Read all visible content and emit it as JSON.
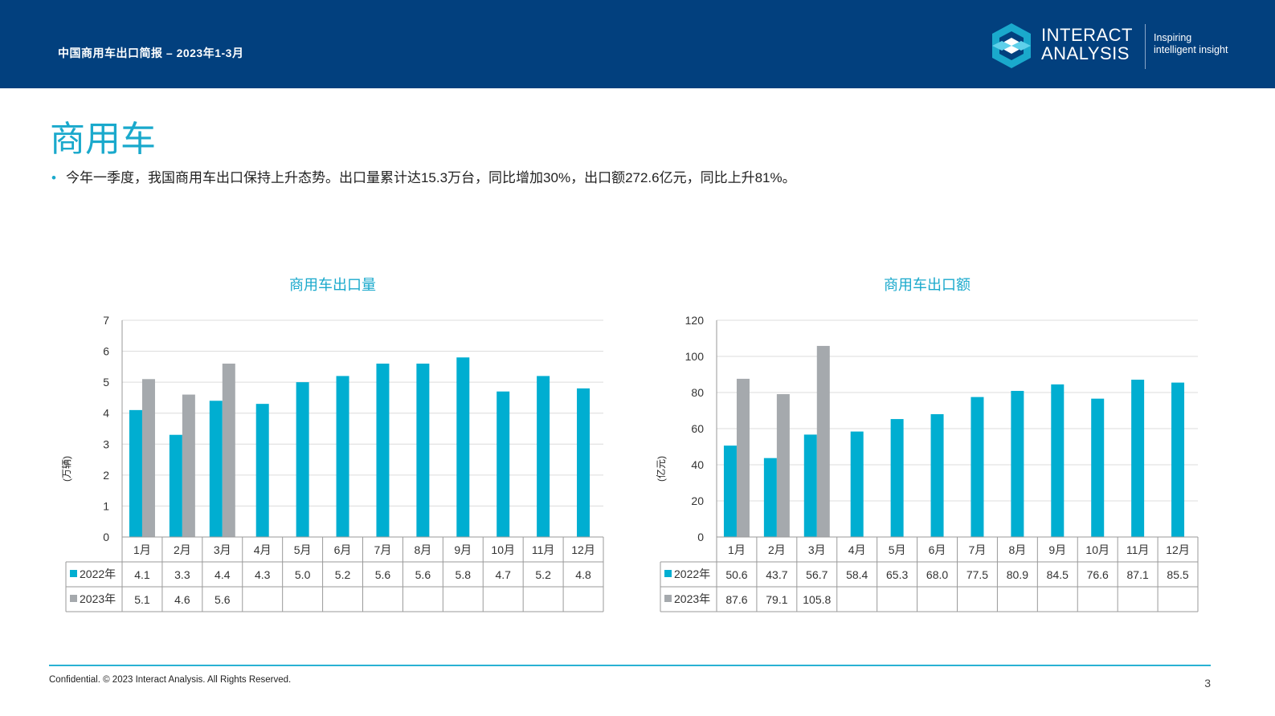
{
  "header": {
    "report_title": "中国商用车出口简报 – 2023年1-3月",
    "logo_line1": "INTERACT",
    "logo_line2": "ANALYSIS",
    "tagline1": "Inspiring",
    "tagline2": "intelligent insight"
  },
  "page": {
    "heading": "商用车",
    "bullet": "•",
    "summary": "今年一季度，我国商用车出口保持上升态势。出口量累计达15.3万台，同比增加30%，出口额272.6亿元，同比上升81%。"
  },
  "footer": {
    "text": "Confidential. © 2023 Interact Analysis. All Rights Reserved.",
    "page_number": "3",
    "line_color": "#29b2d3"
  },
  "colors": {
    "brand_blue": "#02407e",
    "accent": "#1aa9cc",
    "series_2022": "#00aed1",
    "series_2023": "#a5a9ad"
  },
  "chart_data": [
    {
      "type": "bar",
      "title": "商用车出口量",
      "ylabel": "(万辆)",
      "ylim": [
        0,
        7
      ],
      "yticks": [
        0,
        1,
        2,
        3,
        4,
        5,
        6,
        7
      ],
      "categories": [
        "1月",
        "2月",
        "3月",
        "4月",
        "5月",
        "6月",
        "7月",
        "8月",
        "9月",
        "10月",
        "11月",
        "12月"
      ],
      "series": [
        {
          "name": "2022年",
          "values": [
            4.1,
            3.3,
            4.4,
            4.3,
            5.0,
            5.2,
            5.6,
            5.6,
            5.8,
            4.7,
            5.2,
            4.8
          ]
        },
        {
          "name": "2023年",
          "values": [
            5.1,
            4.6,
            5.6,
            null,
            null,
            null,
            null,
            null,
            null,
            null,
            null,
            null
          ]
        }
      ],
      "grid": true,
      "data_table": true
    },
    {
      "type": "bar",
      "title": "商用车出口额",
      "ylabel": "(亿元)",
      "ylim": [
        0,
        120
      ],
      "yticks": [
        0,
        20,
        40,
        60,
        80,
        100,
        120
      ],
      "categories": [
        "1月",
        "2月",
        "3月",
        "4月",
        "5月",
        "6月",
        "7月",
        "8月",
        "9月",
        "10月",
        "11月",
        "12月"
      ],
      "series": [
        {
          "name": "2022年",
          "values": [
            50.6,
            43.7,
            56.7,
            58.4,
            65.3,
            68.0,
            77.5,
            80.9,
            84.5,
            76.6,
            87.1,
            85.5
          ]
        },
        {
          "name": "2023年",
          "values": [
            87.6,
            79.1,
            105.8,
            null,
            null,
            null,
            null,
            null,
            null,
            null,
            null,
            null
          ]
        }
      ],
      "grid": true,
      "data_table": true
    }
  ]
}
